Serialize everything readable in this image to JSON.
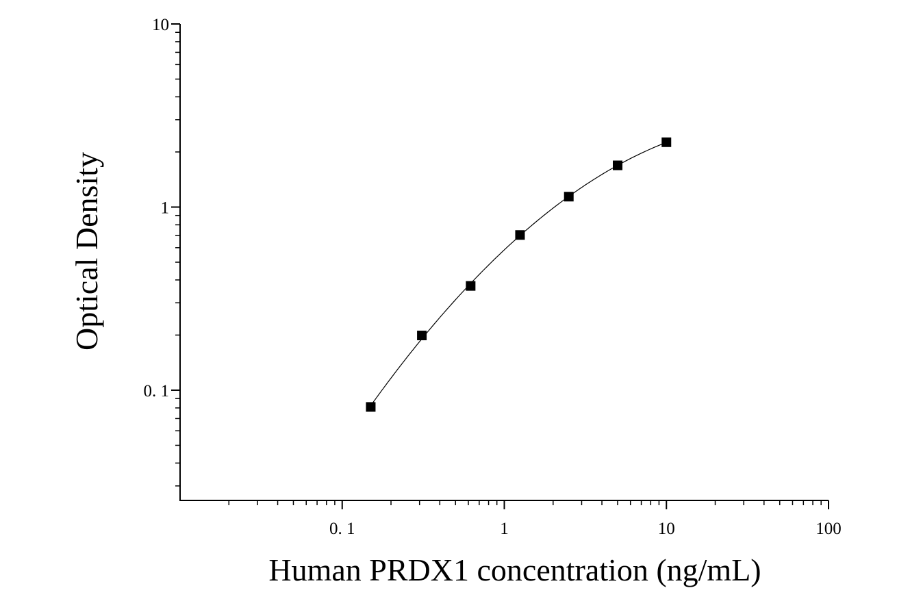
{
  "chart_data": {
    "type": "scatter",
    "title": "",
    "xlabel": "Human PRDX1 concentration (ng/mL)",
    "ylabel": "Optical Density",
    "x_scale": "log",
    "y_scale": "log",
    "xlim": [
      0.01,
      100
    ],
    "ylim": [
      0.025,
      10
    ],
    "x_ticks": [
      {
        "value": 0.1,
        "label": "0. 1"
      },
      {
        "value": 1,
        "label": "1"
      },
      {
        "value": 10,
        "label": "10"
      },
      {
        "value": 100,
        "label": "100"
      }
    ],
    "y_ticks": [
      {
        "value": 0.1,
        "label": "0. 1"
      },
      {
        "value": 1,
        "label": "1"
      },
      {
        "value": 10,
        "label": "10"
      }
    ],
    "grid": false,
    "legend": "none",
    "marker": "square",
    "color": "#000000",
    "series": [
      {
        "x": [
          0.15,
          0.31,
          0.62,
          1.25,
          2.5,
          5,
          10
        ],
        "y": [
          0.081,
          0.199,
          0.371,
          0.704,
          1.14,
          1.69,
          2.26
        ],
        "fit_curve": true
      }
    ]
  }
}
